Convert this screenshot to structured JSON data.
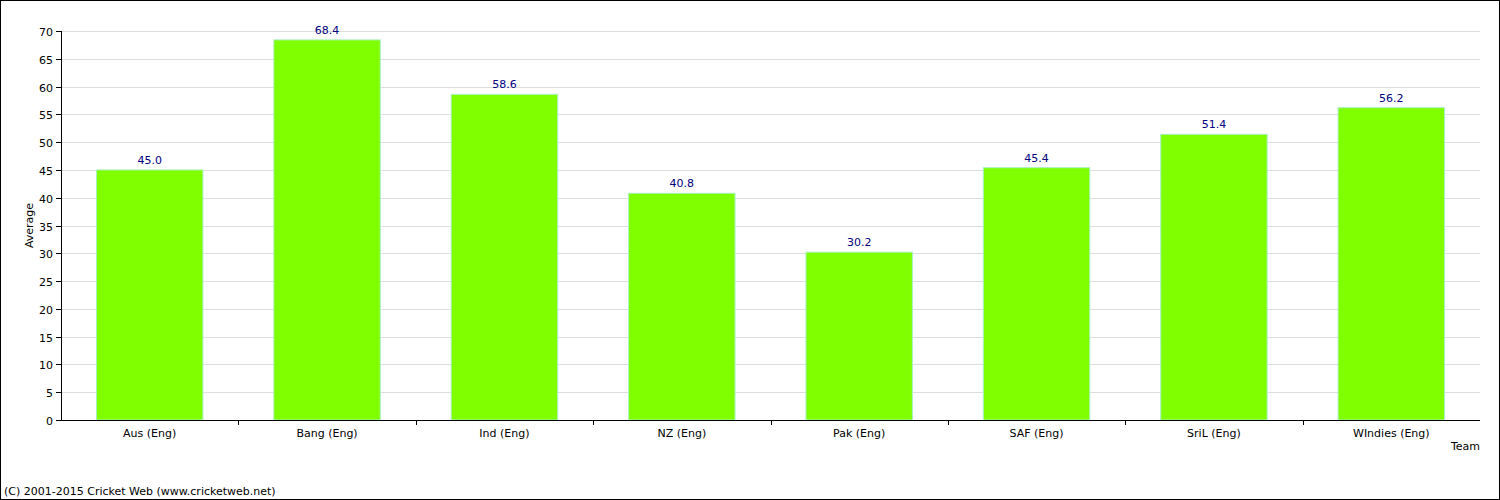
{
  "chart_data": {
    "type": "bar",
    "categories": [
      "Aus (Eng)",
      "Bang (Eng)",
      "Ind (Eng)",
      "NZ (Eng)",
      "Pak (Eng)",
      "SAF (Eng)",
      "SriL (Eng)",
      "WIndies (Eng)"
    ],
    "values": [
      45.0,
      68.4,
      58.6,
      40.8,
      30.2,
      45.4,
      51.4,
      56.2
    ],
    "value_labels": [
      "45.0",
      "68.4",
      "58.6",
      "40.8",
      "30.2",
      "45.4",
      "51.4",
      "56.2"
    ],
    "color": "#7fff00",
    "y_label": "Average",
    "x_label": "Team",
    "annotations": [
      "(C) 2001-2015 Cricket Web (www.cricketweb.net)"
    ],
    "ylim": [
      0,
      70
    ],
    "yticks": [
      0,
      5,
      10,
      15,
      20,
      25,
      30,
      35,
      40,
      45,
      50,
      55,
      60,
      65,
      70
    ],
    "grid": true,
    "data_labels": true
  }
}
